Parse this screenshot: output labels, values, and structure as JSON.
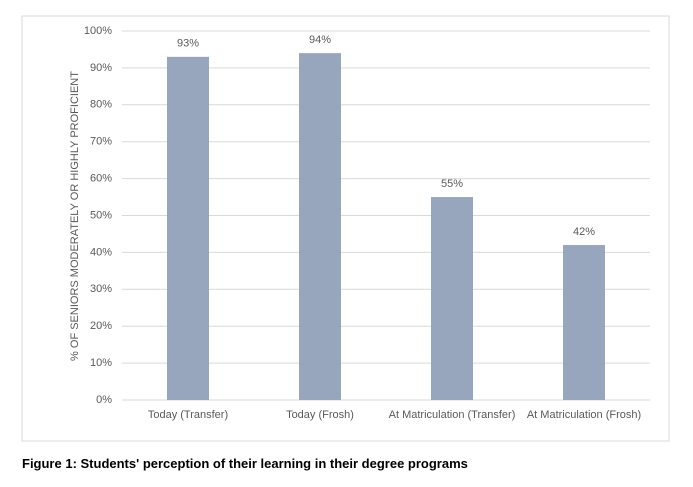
{
  "chart_data": {
    "type": "bar",
    "y_label": "% OF SENIORS MODERATELY OR HIGHLY PROFICIENT",
    "categories": [
      "Today (Transfer)",
      "Today (Frosh)",
      "At Matriculation (Transfer)",
      "At Matriculation (Frosh)"
    ],
    "values": [
      93,
      94,
      55,
      42
    ],
    "value_labels": [
      "93%",
      "94%",
      "55%",
      "42%"
    ],
    "color": "#97a6bc",
    "ylim": [
      0,
      100
    ],
    "yticks": [
      {
        "value": 0,
        "label": "0%"
      },
      {
        "value": 10,
        "label": "10%"
      },
      {
        "value": 20,
        "label": "20%"
      },
      {
        "value": 30,
        "label": "30%"
      },
      {
        "value": 40,
        "label": "40%"
      },
      {
        "value": 50,
        "label": "50%"
      },
      {
        "value": 60,
        "label": "60%"
      },
      {
        "value": 70,
        "label": "70%"
      },
      {
        "value": 80,
        "label": "80%"
      },
      {
        "value": 90,
        "label": "90%"
      },
      {
        "value": 100,
        "label": "100%"
      }
    ],
    "grid": true
  },
  "caption": "Figure 1: Students' perception of their learning in their degree programs"
}
